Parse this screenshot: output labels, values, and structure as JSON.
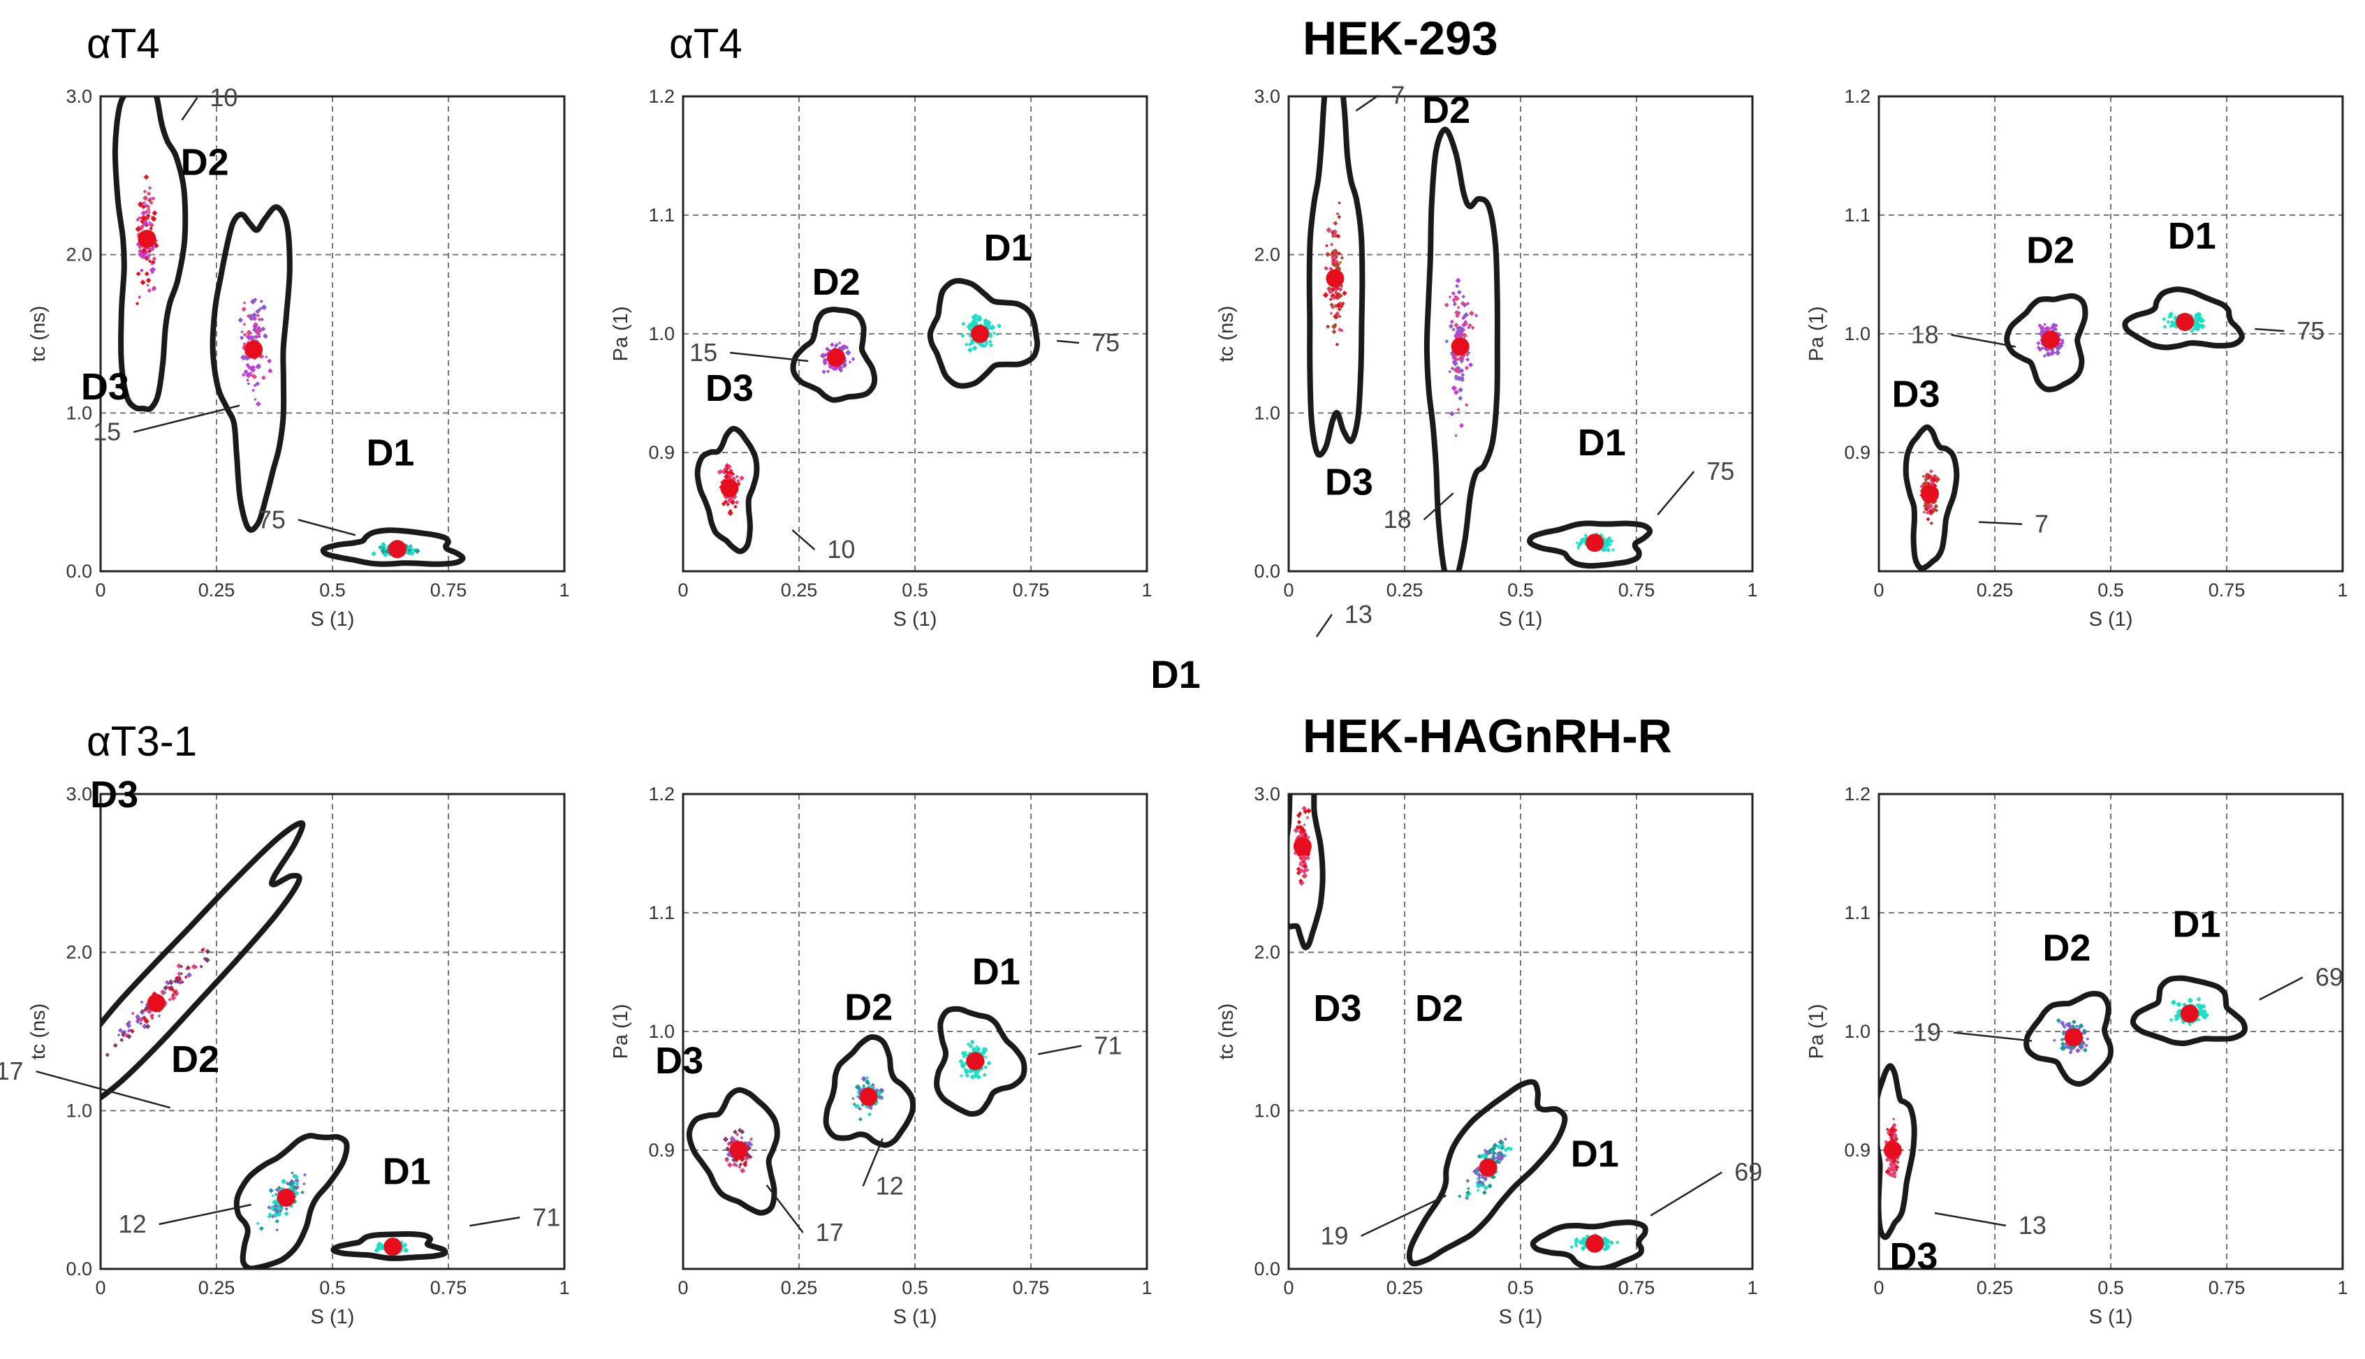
{
  "figure": {
    "center_label": "D1",
    "colors": {
      "cyan": "#19e0c4",
      "pink": "#e8407a",
      "red": "#e60d1c",
      "magenta": "#c33ad4",
      "purple": "#8a5bd0",
      "teal": "#1b9b95",
      "brown": "#b04a30",
      "dark": "#7a3b6a",
      "blob": "#1a1a1a"
    }
  },
  "chart_data": [
    {
      "type": "scatter",
      "group": "αT4",
      "cell_title": "",
      "xlabel": "S (1)",
      "ylabel": "tc (ns)",
      "xlim": [
        0,
        1
      ],
      "ylim": [
        0,
        3.0
      ],
      "xticks": [
        "0",
        "0.25",
        "0.5",
        "0.75",
        "1"
      ],
      "yticks": [
        "0.0",
        "1.0",
        "2.0",
        "3.0"
      ],
      "clusters": [
        {
          "name": "D3",
          "center": [
            0.1,
            2.1
          ],
          "count": "10",
          "colors": [
            "pink",
            "red",
            "magenta"
          ]
        },
        {
          "name": "D2",
          "center": [
            0.33,
            1.4
          ],
          "count": "15",
          "colors": [
            "magenta",
            "purple",
            "pink"
          ]
        },
        {
          "name": "D1",
          "center": [
            0.64,
            0.14
          ],
          "count": "75",
          "colors": [
            "cyan",
            "teal"
          ]
        }
      ]
    },
    {
      "type": "scatter",
      "group": "αT4",
      "cell_title": "",
      "xlabel": "S (1)",
      "ylabel": "Pa (1)",
      "xlim": [
        0,
        1
      ],
      "ylim": [
        0.8,
        1.2
      ],
      "xticks": [
        "0",
        "0.25",
        "0.5",
        "0.75",
        "1"
      ],
      "yticks": [
        "0.9",
        "1.0",
        "1.1",
        "1.2"
      ],
      "clusters": [
        {
          "name": "D3",
          "center": [
            0.1,
            0.87
          ],
          "count": "10",
          "colors": [
            "pink",
            "red"
          ]
        },
        {
          "name": "D2",
          "center": [
            0.33,
            0.98
          ],
          "count": "15",
          "colors": [
            "magenta",
            "purple"
          ]
        },
        {
          "name": "D1",
          "center": [
            0.64,
            1.0
          ],
          "count": "75",
          "colors": [
            "cyan"
          ]
        }
      ]
    },
    {
      "type": "scatter",
      "group": "",
      "cell_title": "HEK-293",
      "xlabel": "S (1)",
      "ylabel": "tc (ns)",
      "xlim": [
        0,
        1
      ],
      "ylim": [
        0,
        3.0
      ],
      "xticks": [
        "0",
        "0.25",
        "0.5",
        "0.75",
        "1"
      ],
      "yticks": [
        "0.0",
        "1.0",
        "2.0",
        "3.0"
      ],
      "clusters": [
        {
          "name": "D3",
          "center": [
            0.1,
            1.85
          ],
          "count": "7",
          "colors": [
            "pink",
            "red",
            "brown"
          ]
        },
        {
          "name": "D2",
          "center": [
            0.37,
            1.42
          ],
          "count": "18",
          "colors": [
            "magenta",
            "purple",
            "pink"
          ]
        },
        {
          "name": "D1",
          "center": [
            0.66,
            0.18
          ],
          "count": "75",
          "colors": [
            "cyan"
          ]
        }
      ]
    },
    {
      "type": "scatter",
      "group": "",
      "cell_title": "",
      "xlabel": "S (1)",
      "ylabel": "Pa (1)",
      "xlim": [
        0,
        1
      ],
      "ylim": [
        0.8,
        1.2
      ],
      "xticks": [
        "0",
        "0.25",
        "0.5",
        "0.75",
        "1"
      ],
      "yticks": [
        "0.9",
        "1.0",
        "1.1",
        "1.2"
      ],
      "clusters": [
        {
          "name": "D3",
          "center": [
            0.11,
            0.865
          ],
          "count": "7",
          "colors": [
            "pink",
            "red",
            "brown"
          ]
        },
        {
          "name": "D2",
          "center": [
            0.37,
            0.995
          ],
          "count": "18",
          "colors": [
            "magenta",
            "purple"
          ]
        },
        {
          "name": "D1",
          "center": [
            0.66,
            1.01
          ],
          "count": "75",
          "colors": [
            "cyan"
          ]
        }
      ]
    },
    {
      "type": "scatter",
      "group": "αT3-1",
      "cell_title": "",
      "xlabel": "S (1)",
      "ylabel": "tc (ns)",
      "xlim": [
        0,
        1
      ],
      "ylim": [
        0,
        3.0
      ],
      "xticks": [
        "0",
        "0.25",
        "0.5",
        "0.75",
        "1"
      ],
      "yticks": [
        "0.0",
        "1.0",
        "2.0",
        "3.0"
      ],
      "clusters": [
        {
          "name": "D3",
          "center": [
            0.12,
            1.68
          ],
          "count": "17",
          "colors": [
            "pink",
            "red",
            "dark",
            "purple"
          ]
        },
        {
          "name": "D2",
          "center": [
            0.4,
            0.45
          ],
          "count": "12",
          "colors": [
            "teal",
            "purple",
            "cyan"
          ]
        },
        {
          "name": "D1",
          "center": [
            0.63,
            0.14
          ],
          "count": "71",
          "colors": [
            "cyan"
          ]
        }
      ]
    },
    {
      "type": "scatter",
      "group": "",
      "cell_title": "",
      "xlabel": "S (1)",
      "ylabel": "Pa (1)",
      "xlim": [
        0,
        1
      ],
      "ylim": [
        0.8,
        1.2
      ],
      "xticks": [
        "0",
        "0.25",
        "0.5",
        "0.75",
        "1"
      ],
      "yticks": [
        "0.9",
        "1.0",
        "1.1",
        "1.2"
      ],
      "clusters": [
        {
          "name": "D3",
          "center": [
            0.12,
            0.9
          ],
          "count": "17",
          "colors": [
            "pink",
            "red",
            "purple",
            "dark"
          ]
        },
        {
          "name": "D2",
          "center": [
            0.4,
            0.945
          ],
          "count": "12",
          "colors": [
            "teal",
            "purple",
            "cyan"
          ]
        },
        {
          "name": "D1",
          "center": [
            0.63,
            0.975
          ],
          "count": "71",
          "colors": [
            "cyan"
          ]
        }
      ]
    },
    {
      "type": "scatter",
      "group": "",
      "cell_title": "HEK-HAGnRH-R",
      "xlabel": "S (1)",
      "ylabel": "tc (ns)",
      "xlim": [
        0,
        1
      ],
      "ylim": [
        0,
        3.0
      ],
      "xticks": [
        "0",
        "0.25",
        "0.5",
        "0.75",
        "1"
      ],
      "yticks": [
        "0.0",
        "1.0",
        "2.0",
        "3.0"
      ],
      "clusters": [
        {
          "name": "D3",
          "center": [
            0.03,
            2.67
          ],
          "count": "13",
          "colors": [
            "pink",
            "red"
          ]
        },
        {
          "name": "D2",
          "center": [
            0.43,
            0.64
          ],
          "count": "19",
          "colors": [
            "purple",
            "teal",
            "cyan"
          ]
        },
        {
          "name": "D1",
          "center": [
            0.66,
            0.16
          ],
          "count": "69",
          "colors": [
            "cyan"
          ]
        }
      ]
    },
    {
      "type": "scatter",
      "group": "",
      "cell_title": "",
      "xlabel": "S (1)",
      "ylabel": "Pa (1)",
      "xlim": [
        0,
        1
      ],
      "ylim": [
        0.8,
        1.2
      ],
      "xticks": [
        "0",
        "0.25",
        "0.5",
        "0.75",
        "1"
      ],
      "yticks": [
        "0.9",
        "1.0",
        "1.1",
        "1.2"
      ],
      "clusters": [
        {
          "name": "D3",
          "center": [
            0.03,
            0.9
          ],
          "count": "13",
          "colors": [
            "pink",
            "red"
          ]
        },
        {
          "name": "D2",
          "center": [
            0.42,
            0.995
          ],
          "count": "19",
          "colors": [
            "purple",
            "teal"
          ]
        },
        {
          "name": "D1",
          "center": [
            0.67,
            1.015
          ],
          "count": "69",
          "colors": [
            "cyan"
          ]
        }
      ]
    }
  ]
}
